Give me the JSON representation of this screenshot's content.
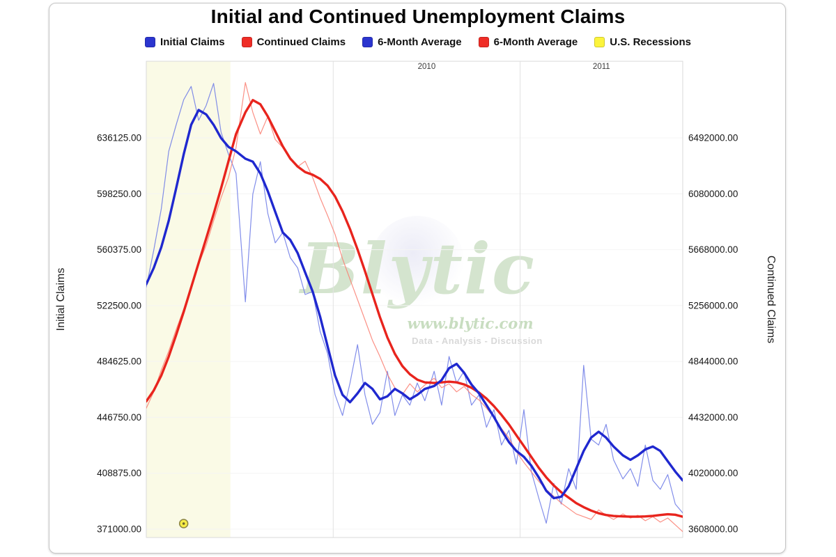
{
  "header": {
    "title": "Initial and Continued Unemployment Claims"
  },
  "legend": [
    {
      "id": "initial-claims",
      "label": "Initial Claims",
      "color": "#2b35cf"
    },
    {
      "id": "continued-claims",
      "label": "Continued Claims",
      "color": "#ef2d26"
    },
    {
      "id": "initial-claims-6mo-avg",
      "label": "6-Month Average",
      "color": "#2b35cf"
    },
    {
      "id": "continued-claims-6mo-avg",
      "label": "6-Month Average",
      "color": "#ef2d26"
    },
    {
      "id": "us-recessions",
      "label": "U.S. Recessions",
      "color": "#fcf43c"
    }
  ],
  "watermark": {
    "brand": "Blytic",
    "url": "www.blytic.com",
    "tagline": "Data - Analysis - Discussion"
  },
  "colors": {
    "recession_band": "#fafae6",
    "grid_vertical": "#e2e2e2",
    "grid_horizontal": "#f4f4f4",
    "plot_border": "#d9d9d9",
    "tick_text": "#161616",
    "year_text": "#3c3c3c",
    "marker_fill": "#f6ec49",
    "marker_stroke": "#8a8342"
  },
  "chart_data": {
    "type": "line",
    "title": "Initial and Continued Unemployment Claims",
    "x_label_position": "top",
    "x_tick_labels": [
      "2010",
      "2011"
    ],
    "x_gridlines": [
      2010,
      2011
    ],
    "x_range": [
      2009.0,
      2011.87
    ],
    "y_left": {
      "label": "Initial Claims",
      "ticks": [
        371000,
        408875,
        446750,
        484625,
        522500,
        560375,
        598250,
        636125
      ],
      "tick_labels": [
        "371000.00",
        "408875.00",
        "446750.00",
        "484625.00",
        "522500.00",
        "560375.00",
        "598250.00",
        "636125.00"
      ]
    },
    "y_right": {
      "label": "Continued Claims",
      "ticks": [
        3608000,
        4020000,
        4432000,
        4844000,
        5256000,
        5668000,
        6080000,
        6492000
      ],
      "tick_labels": [
        "3608000.00",
        "4020000.00",
        "4432000.00",
        "4844000.00",
        "5256000.00",
        "5668000.00",
        "6080000.00",
        "6492000.00"
      ]
    },
    "recession_bands": [
      {
        "start": 2009.0,
        "end": 2009.45,
        "legend": "U.S. Recessions"
      }
    ],
    "recession_marker": {
      "t": 2009.2
    },
    "x": [
      2009.0,
      2009.04,
      2009.08,
      2009.12,
      2009.16,
      2009.2,
      2009.24,
      2009.28,
      2009.32,
      2009.36,
      2009.4,
      2009.44,
      2009.48,
      2009.53,
      2009.57,
      2009.61,
      2009.65,
      2009.69,
      2009.73,
      2009.77,
      2009.81,
      2009.85,
      2009.89,
      2009.93,
      2009.97,
      2010.01,
      2010.05,
      2010.09,
      2010.13,
      2010.17,
      2010.21,
      2010.25,
      2010.29,
      2010.33,
      2010.37,
      2010.41,
      2010.45,
      2010.49,
      2010.54,
      2010.58,
      2010.62,
      2010.66,
      2010.7,
      2010.74,
      2010.78,
      2010.82,
      2010.86,
      2010.9,
      2010.94,
      2010.98,
      2011.02,
      2011.06,
      2011.1,
      2011.14,
      2011.18,
      2011.22,
      2011.26,
      2011.3,
      2011.34,
      2011.38,
      2011.42,
      2011.46,
      2011.5,
      2011.55,
      2011.59,
      2011.63,
      2011.67,
      2011.71,
      2011.75,
      2011.79,
      2011.83,
      2011.87
    ],
    "series": [
      {
        "id": "initial-claims",
        "name": "Initial Claims",
        "axis": "left",
        "color": "#6b79e6",
        "width": 1.2,
        "opacity": 0.85,
        "values": [
          535000,
          560000,
          588000,
          627000,
          645000,
          662000,
          671000,
          648000,
          658000,
          673000,
          640000,
          625000,
          612000,
          525000,
          598000,
          620000,
          585000,
          565000,
          572000,
          555000,
          548000,
          530000,
          532000,
          505000,
          490000,
          462000,
          448000,
          470000,
          496000,
          462000,
          442000,
          450000,
          478000,
          448000,
          462000,
          455000,
          470000,
          458000,
          478000,
          455000,
          488000,
          470000,
          478000,
          455000,
          462000,
          440000,
          452000,
          428000,
          438000,
          415000,
          452000,
          410000,
          392000,
          375000,
          402000,
          388000,
          412000,
          398000,
          482000,
          432000,
          428000,
          442000,
          418000,
          405000,
          412000,
          400000,
          428000,
          404000,
          398000,
          408000,
          388000,
          382000
        ]
      },
      {
        "id": "continued-claims",
        "name": "Continued Claims",
        "axis": "right",
        "color": "#fa7c70",
        "width": 1.2,
        "opacity": 0.85,
        "values": [
          4500000,
          4620000,
          4780000,
          4920000,
          5080000,
          5230000,
          5390000,
          5560000,
          5700000,
          5880000,
          6050000,
          6200000,
          6420000,
          6900000,
          6680000,
          6520000,
          6650000,
          6480000,
          6420000,
          6330000,
          6280000,
          6320000,
          6200000,
          6050000,
          5920000,
          5780000,
          5600000,
          5450000,
          5300000,
          5150000,
          5000000,
          4880000,
          4750000,
          4650000,
          4600000,
          4680000,
          4620000,
          4670000,
          4720000,
          4650000,
          4680000,
          4620000,
          4660000,
          4600000,
          4560000,
          4500000,
          4430000,
          4350000,
          4280000,
          4180000,
          4100000,
          4030000,
          3960000,
          3900000,
          3850000,
          3800000,
          3760000,
          3720000,
          3700000,
          3680000,
          3750000,
          3710000,
          3680000,
          3720000,
          3690000,
          3710000,
          3670000,
          3700000,
          3660000,
          3690000,
          3640000,
          3590000
        ]
      },
      {
        "id": "continued-claims-6mo-avg",
        "name": "Continued Claims 6-Month Average",
        "axis": "right",
        "color": "#e8241d",
        "width": 3.4,
        "opacity": 1,
        "values": [
          4550000,
          4630000,
          4740000,
          4880000,
          5040000,
          5210000,
          5390000,
          5570000,
          5750000,
          5930000,
          6120000,
          6320000,
          6520000,
          6680000,
          6770000,
          6740000,
          6650000,
          6540000,
          6430000,
          6340000,
          6280000,
          6240000,
          6220000,
          6190000,
          6140000,
          6060000,
          5950000,
          5820000,
          5670000,
          5510000,
          5340000,
          5170000,
          5020000,
          4900000,
          4810000,
          4750000,
          4710000,
          4690000,
          4685000,
          4690000,
          4695000,
          4690000,
          4675000,
          4650000,
          4615000,
          4570000,
          4515000,
          4450000,
          4380000,
          4300000,
          4220000,
          4140000,
          4060000,
          3990000,
          3930000,
          3880000,
          3840000,
          3800000,
          3770000,
          3745000,
          3725000,
          3712000,
          3705000,
          3702000,
          3700000,
          3700000,
          3702000,
          3706000,
          3712000,
          3718000,
          3714000,
          3700000
        ]
      },
      {
        "id": "initial-claims-6mo-avg",
        "name": "Initial Claims 6-Month Average",
        "axis": "left",
        "color": "#1f28cf",
        "width": 3.4,
        "opacity": 1,
        "values": [
          537000,
          548000,
          562000,
          580000,
          602000,
          625000,
          645000,
          655000,
          652000,
          645000,
          636000,
          630000,
          627000,
          622000,
          620000,
          612000,
          600000,
          586000,
          572000,
          567000,
          558000,
          545000,
          532000,
          515000,
          495000,
          475000,
          462000,
          457000,
          463000,
          470000,
          466000,
          459000,
          461000,
          466000,
          463000,
          459000,
          462000,
          466000,
          468000,
          472000,
          480000,
          483000,
          477000,
          469000,
          463000,
          455000,
          447000,
          438000,
          430000,
          424000,
          420000,
          414000,
          406000,
          397000,
          392000,
          393000,
          400000,
          412000,
          424000,
          433000,
          437000,
          433000,
          427000,
          421000,
          418000,
          421000,
          425000,
          427000,
          424000,
          417000,
          410000,
          404000
        ]
      }
    ]
  }
}
